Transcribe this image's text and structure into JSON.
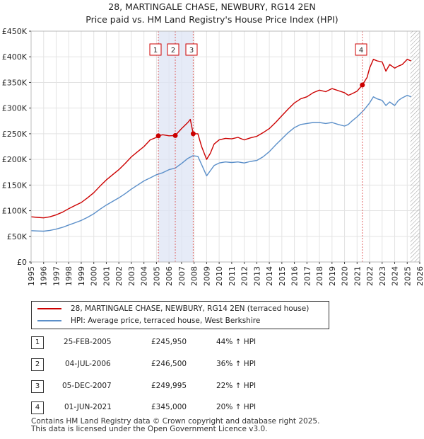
{
  "title_line1": "28, MARTINGALE CHASE, NEWBURY, RG14 2EN",
  "title_line2": "Price paid vs. HM Land Registry's House Price Index (HPI)",
  "chart_data": {
    "type": "line",
    "title": "Price paid vs. HM Land Registry's House Price Index (HPI)",
    "xlim": [
      1995,
      2026
    ],
    "ylim": [
      0,
      450000
    ],
    "x_ticks": [
      "1995",
      "1996",
      "1997",
      "1998",
      "1999",
      "2000",
      "2001",
      "2002",
      "2003",
      "2004",
      "2005",
      "2006",
      "2007",
      "2008",
      "2009",
      "2010",
      "2011",
      "2012",
      "2013",
      "2014",
      "2015",
      "2016",
      "2017",
      "2018",
      "2019",
      "2020",
      "2021",
      "2022",
      "2023",
      "2024",
      "2025",
      "2026"
    ],
    "y_ticks": [
      {
        "value": 0,
        "label": "£0"
      },
      {
        "value": 50000,
        "label": "£50K"
      },
      {
        "value": 100000,
        "label": "£100K"
      },
      {
        "value": 150000,
        "label": "£150K"
      },
      {
        "value": 200000,
        "label": "£200K"
      },
      {
        "value": 250000,
        "label": "£250K"
      },
      {
        "value": 300000,
        "label": "£300K"
      },
      {
        "value": 350000,
        "label": "£350K"
      },
      {
        "value": 400000,
        "label": "£400K"
      },
      {
        "value": 450000,
        "label": "£450K"
      }
    ],
    "series": [
      {
        "name": "28, MARTINGALE CHASE, NEWBURY, RG14 2EN (terraced house)",
        "color": "#cc0000",
        "x": [
          1995.0,
          1995.5,
          1996.0,
          1996.5,
          1997.0,
          1997.5,
          1998.0,
          1998.5,
          1999.0,
          1999.5,
          2000.0,
          2000.5,
          2001.0,
          2001.5,
          2002.0,
          2002.5,
          2003.0,
          2003.5,
          2004.0,
          2004.5,
          2005.0,
          2005.15,
          2005.5,
          2006.0,
          2006.5,
          2007.0,
          2007.5,
          2007.7,
          2007.93,
          2008.3,
          2008.6,
          2009.0,
          2009.3,
          2009.6,
          2010.0,
          2010.5,
          2011.0,
          2011.5,
          2012.0,
          2012.5,
          2013.0,
          2013.5,
          2014.0,
          2014.5,
          2015.0,
          2015.5,
          2016.0,
          2016.5,
          2017.0,
          2017.5,
          2018.0,
          2018.5,
          2019.0,
          2019.5,
          2020.0,
          2020.3,
          2020.6,
          2021.0,
          2021.42,
          2021.8,
          2022.0,
          2022.3,
          2022.6,
          2023.0,
          2023.3,
          2023.6,
          2024.0,
          2024.3,
          2024.6,
          2025.0,
          2025.3
        ],
        "y": [
          88000,
          87000,
          86000,
          88000,
          92000,
          97000,
          104000,
          110000,
          116000,
          125000,
          135000,
          148000,
          160000,
          170000,
          180000,
          192000,
          205000,
          215000,
          225000,
          238000,
          243000,
          245950,
          248000,
          246000,
          246500,
          260000,
          272000,
          278000,
          249995,
          250000,
          225000,
          200000,
          212000,
          230000,
          238000,
          241000,
          240000,
          243000,
          238000,
          242000,
          245000,
          252000,
          260000,
          272000,
          285000,
          298000,
          310000,
          318000,
          322000,
          330000,
          335000,
          332000,
          338000,
          334000,
          330000,
          325000,
          328000,
          333000,
          345000,
          360000,
          378000,
          395000,
          392000,
          390000,
          372000,
          385000,
          378000,
          382000,
          385000,
          395000,
          392000
        ]
      },
      {
        "name": "HPI: Average price, terraced house, West Berkshire",
        "color": "#5b8fc9",
        "x": [
          1995.0,
          1995.5,
          1996.0,
          1996.5,
          1997.0,
          1997.5,
          1998.0,
          1998.5,
          1999.0,
          1999.5,
          2000.0,
          2000.5,
          2001.0,
          2001.5,
          2002.0,
          2002.5,
          2003.0,
          2003.5,
          2004.0,
          2004.5,
          2005.0,
          2005.5,
          2006.0,
          2006.5,
          2007.0,
          2007.5,
          2007.9,
          2008.3,
          2008.6,
          2009.0,
          2009.3,
          2009.6,
          2010.0,
          2010.5,
          2011.0,
          2011.5,
          2012.0,
          2012.5,
          2013.0,
          2013.5,
          2014.0,
          2014.5,
          2015.0,
          2015.5,
          2016.0,
          2016.5,
          2017.0,
          2017.5,
          2018.0,
          2018.5,
          2019.0,
          2019.5,
          2020.0,
          2020.3,
          2020.6,
          2021.0,
          2021.5,
          2022.0,
          2022.3,
          2022.6,
          2023.0,
          2023.3,
          2023.6,
          2024.0,
          2024.3,
          2024.6,
          2025.0,
          2025.3
        ],
        "y": [
          61000,
          60500,
          60000,
          61500,
          64000,
          67500,
          72000,
          76500,
          81000,
          87000,
          94000,
          103000,
          111000,
          118000,
          125000,
          133000,
          142000,
          150000,
          158000,
          164000,
          170000,
          174000,
          180000,
          183000,
          192000,
          202000,
          207000,
          206000,
          190000,
          168000,
          178000,
          188000,
          193000,
          195000,
          194000,
          195000,
          193000,
          196000,
          198000,
          205000,
          215000,
          228000,
          240000,
          252000,
          262000,
          268000,
          270000,
          272000,
          272000,
          270000,
          272000,
          268000,
          265000,
          268000,
          275000,
          283000,
          295000,
          310000,
          322000,
          318000,
          315000,
          305000,
          312000,
          305000,
          315000,
          320000,
          325000,
          322000
        ]
      }
    ],
    "sales": [
      {
        "id": "1",
        "x": 2005.15,
        "price": 245950
      },
      {
        "id": "2",
        "x": 2006.5,
        "price": 246500
      },
      {
        "id": "3",
        "x": 2007.93,
        "price": 249995
      },
      {
        "id": "4",
        "x": 2021.42,
        "price": 345000
      }
    ],
    "shaded_spans": [
      [
        2005.15,
        2007.93
      ]
    ],
    "hatched_from": 2025.25
  },
  "legend": {
    "property": "28, MARTINGALE CHASE, NEWBURY, RG14 2EN (terraced house)",
    "hpi": "HPI: Average price, terraced house, West Berkshire"
  },
  "transactions": [
    {
      "num": "1",
      "date": "25-FEB-2005",
      "price": "£245,950",
      "hpi": "44% ↑ HPI"
    },
    {
      "num": "2",
      "date": "04-JUL-2006",
      "price": "£246,500",
      "hpi": "36% ↑ HPI"
    },
    {
      "num": "3",
      "date": "05-DEC-2007",
      "price": "£249,995",
      "hpi": "22% ↑ HPI"
    },
    {
      "num": "4",
      "date": "01-JUN-2021",
      "price": "£345,000",
      "hpi": "20% ↑ HPI"
    }
  ],
  "footer_line1": "Contains HM Land Registry data © Crown copyright and database right 2025.",
  "footer_line2": "This data is licensed under the Open Government Licence v3.0."
}
